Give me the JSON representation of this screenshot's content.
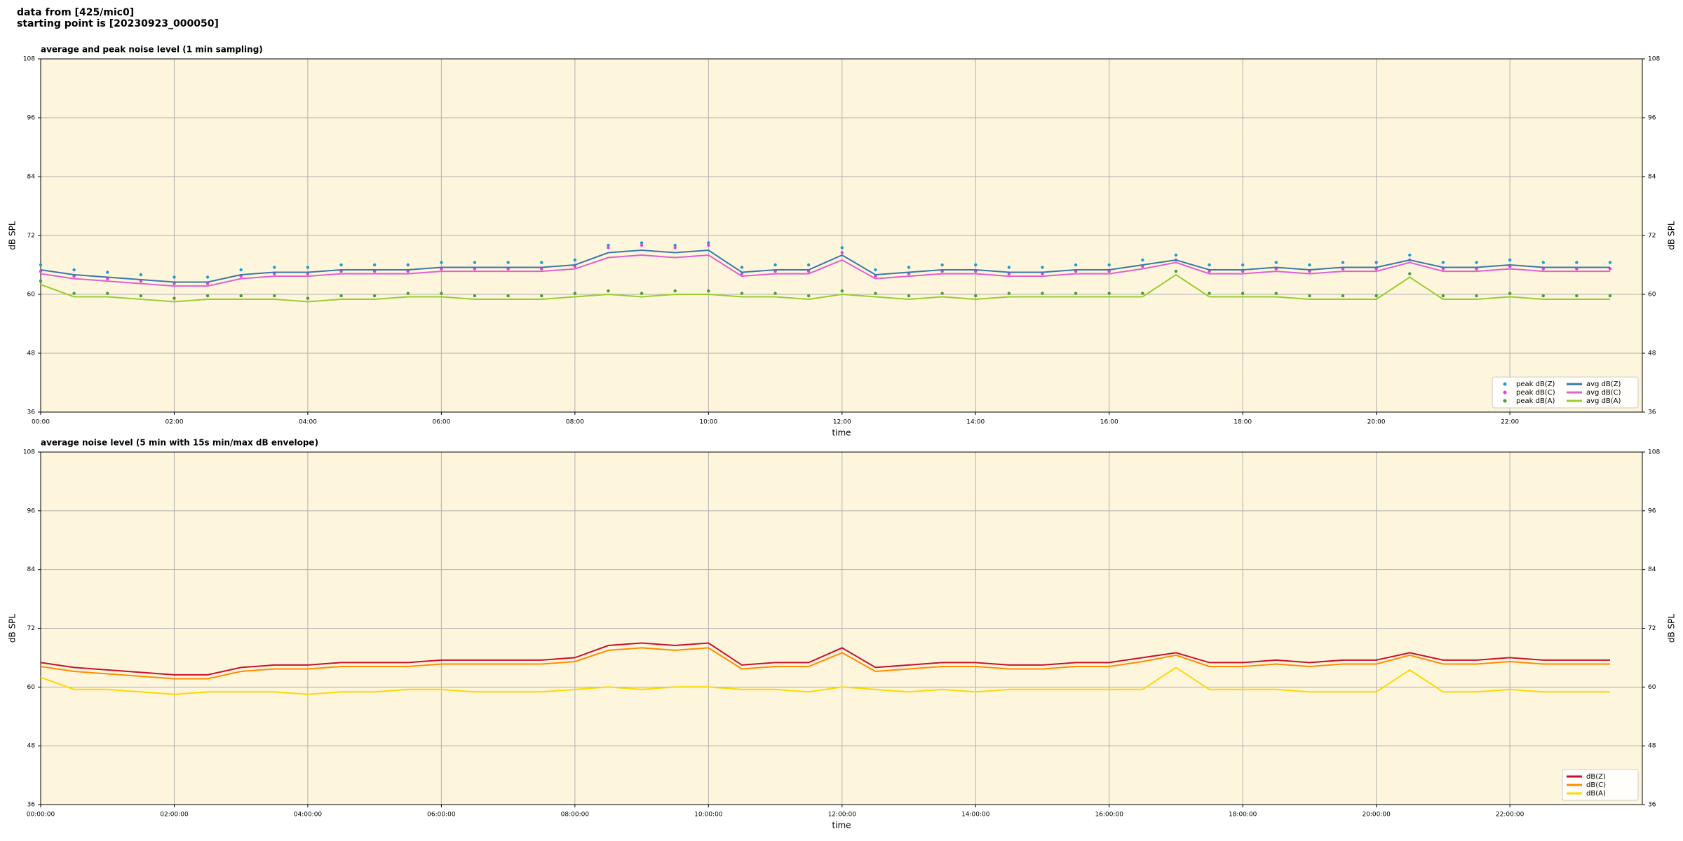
{
  "header": {
    "source": "data from [425/mic0]",
    "start": "starting point is [20230923_000050]"
  },
  "chart_data": [
    {
      "type": "line",
      "title": "average and peak noise level (1 min sampling)",
      "xlabel": "time",
      "ylabel": "dB SPL",
      "x": [
        "00:00",
        "00:30",
        "01:00",
        "01:30",
        "02:00",
        "02:30",
        "03:00",
        "03:30",
        "04:00",
        "04:30",
        "05:00",
        "05:30",
        "06:00",
        "06:30",
        "07:00",
        "07:30",
        "08:00",
        "08:30",
        "09:00",
        "09:30",
        "10:00",
        "10:30",
        "11:00",
        "11:30",
        "12:00",
        "12:30",
        "13:00",
        "13:30",
        "14:00",
        "14:30",
        "15:00",
        "15:30",
        "16:00",
        "16:30",
        "17:00",
        "17:30",
        "18:00",
        "18:30",
        "19:00",
        "19:30",
        "20:00",
        "20:30",
        "21:00",
        "21:30",
        "22:00",
        "22:30",
        "23:00",
        "23:30"
      ],
      "xlim": [
        "00:00",
        "23:59"
      ],
      "xticks": [
        "00:00",
        "02:00",
        "04:00",
        "06:00",
        "08:00",
        "10:00",
        "12:00",
        "14:00",
        "16:00",
        "18:00",
        "20:00",
        "22:00"
      ],
      "ylim": [
        36,
        108
      ],
      "yticks": [
        36,
        48,
        60,
        72,
        84,
        96,
        108
      ],
      "grid": true,
      "legend": "lower right",
      "legend_columns": 2,
      "series": [
        {
          "name": "peak dB(Z)",
          "style": "dots",
          "color": "#1f9bcf",
          "values": [
            66,
            65,
            64.5,
            64,
            63.5,
            63.5,
            65,
            65.5,
            65.5,
            66,
            66,
            66,
            66.5,
            66.5,
            66.5,
            66.5,
            67,
            70,
            70.5,
            70,
            70.5,
            65.5,
            66,
            66,
            69.5,
            65,
            65.5,
            66,
            66,
            65.5,
            65.5,
            66,
            66,
            67,
            68,
            66,
            66,
            66.5,
            66,
            66.5,
            66.5,
            68,
            66.5,
            66.5,
            67,
            66.5,
            66.5,
            66.5
          ]
        },
        {
          "name": "peak dB(C)",
          "style": "dots",
          "color": "#e040e0",
          "values": [
            64.7,
            63.7,
            63.2,
            62.7,
            62.2,
            62.2,
            63.7,
            64.2,
            64.2,
            64.7,
            64.7,
            64.7,
            65.2,
            65.2,
            65.2,
            65.2,
            65.7,
            69.5,
            70,
            69.5,
            70,
            64.2,
            64.7,
            64.7,
            68.5,
            63.7,
            64.2,
            64.7,
            64.7,
            64.2,
            64.2,
            64.7,
            64.7,
            65.7,
            67,
            64.7,
            64.7,
            65.2,
            64.7,
            65.2,
            65.2,
            67,
            65.2,
            65.2,
            65.7,
            65.2,
            65.2,
            65.2
          ]
        },
        {
          "name": "peak dB(A)",
          "style": "dots",
          "color": "#4a9a3a",
          "values": [
            62.7,
            60.2,
            60.2,
            59.7,
            59.2,
            59.7,
            59.7,
            59.7,
            59.2,
            59.7,
            59.7,
            60.2,
            60.2,
            59.7,
            59.7,
            59.7,
            60.2,
            60.7,
            60.2,
            60.7,
            60.7,
            60.2,
            60.2,
            59.7,
            60.7,
            60.2,
            59.7,
            60.2,
            59.7,
            60.2,
            60.2,
            60.2,
            60.2,
            60.2,
            64.7,
            60.2,
            60.2,
            60.2,
            59.7,
            59.7,
            59.7,
            64.2,
            59.7,
            59.7,
            60.2,
            59.7,
            59.7,
            59.7
          ]
        },
        {
          "name": "avg dB(Z)",
          "style": "line",
          "color": "#3a78a8",
          "values": [
            65,
            64,
            63.5,
            63,
            62.5,
            62.5,
            64,
            64.5,
            64.5,
            65,
            65,
            65,
            65.5,
            65.5,
            65.5,
            65.5,
            66,
            68.5,
            69,
            68.5,
            69,
            64.5,
            65,
            65,
            68,
            64,
            64.5,
            65,
            65,
            64.5,
            64.5,
            65,
            65,
            66,
            67,
            65,
            65,
            65.5,
            65,
            65.5,
            65.5,
            67,
            65.5,
            65.5,
            66,
            65.5,
            65.5,
            65.5
          ]
        },
        {
          "name": "avg dB(C)",
          "style": "line",
          "color": "#e060d0",
          "values": [
            64.2,
            63.2,
            62.7,
            62.2,
            61.7,
            61.7,
            63.2,
            63.7,
            63.7,
            64.2,
            64.2,
            64.2,
            64.7,
            64.7,
            64.7,
            64.7,
            65.2,
            67.5,
            68,
            67.5,
            68,
            63.7,
            64.2,
            64.2,
            67,
            63.2,
            63.7,
            64.2,
            64.2,
            63.7,
            63.7,
            64.2,
            64.2,
            65.2,
            66.5,
            64.2,
            64.2,
            64.7,
            64.2,
            64.7,
            64.7,
            66.5,
            64.7,
            64.7,
            65.2,
            64.7,
            64.7,
            64.7
          ]
        },
        {
          "name": "avg dB(A)",
          "style": "line",
          "color": "#9acd32",
          "values": [
            62,
            59.5,
            59.5,
            59,
            58.5,
            59,
            59,
            59,
            58.5,
            59,
            59,
            59.5,
            59.5,
            59,
            59,
            59,
            59.5,
            60,
            59.5,
            60,
            60,
            59.5,
            59.5,
            59,
            60,
            59.5,
            59,
            59.5,
            59,
            59.5,
            59.5,
            59.5,
            59.5,
            59.5,
            64,
            59.5,
            59.5,
            59.5,
            59,
            59,
            59,
            63.5,
            59,
            59,
            59.5,
            59,
            59,
            59
          ]
        }
      ]
    },
    {
      "type": "line",
      "title": "average noise level (5 min with 15s min/max dB envelope)",
      "xlabel": "time",
      "ylabel": "dB SPL",
      "x": [
        "00:00:00",
        "00:30:00",
        "01:00:00",
        "01:30:00",
        "02:00:00",
        "02:30:00",
        "03:00:00",
        "03:30:00",
        "04:00:00",
        "04:30:00",
        "05:00:00",
        "05:30:00",
        "06:00:00",
        "06:30:00",
        "07:00:00",
        "07:30:00",
        "08:00:00",
        "08:30:00",
        "09:00:00",
        "09:30:00",
        "10:00:00",
        "10:30:00",
        "11:00:00",
        "11:30:00",
        "12:00:00",
        "12:30:00",
        "13:00:00",
        "13:30:00",
        "14:00:00",
        "14:30:00",
        "15:00:00",
        "15:30:00",
        "16:00:00",
        "16:30:00",
        "17:00:00",
        "17:30:00",
        "18:00:00",
        "18:30:00",
        "19:00:00",
        "19:30:00",
        "20:00:00",
        "20:30:00",
        "21:00:00",
        "21:30:00",
        "22:00:00",
        "22:30:00",
        "23:00:00",
        "23:30:00"
      ],
      "xlim": [
        "00:00:00",
        "23:59:00"
      ],
      "xticks": [
        "00:00:00",
        "02:00:00",
        "04:00:00",
        "06:00:00",
        "08:00:00",
        "10:00:00",
        "12:00:00",
        "14:00:00",
        "16:00:00",
        "18:00:00",
        "20:00:00",
        "22:00:00"
      ],
      "ylim": [
        36,
        108
      ],
      "yticks": [
        36,
        48,
        60,
        72,
        84,
        96,
        108
      ],
      "grid": true,
      "legend": "lower right",
      "legend_columns": 1,
      "series": [
        {
          "name": "dB(Z)",
          "style": "line",
          "color": "#c8102e",
          "values": [
            65,
            64,
            63.5,
            63,
            62.5,
            62.5,
            64,
            64.5,
            64.5,
            65,
            65,
            65,
            65.5,
            65.5,
            65.5,
            65.5,
            66,
            68.5,
            69,
            68.5,
            69,
            64.5,
            65,
            65,
            68,
            64,
            64.5,
            65,
            65,
            64.5,
            64.5,
            65,
            65,
            66,
            67,
            65,
            65,
            65.5,
            65,
            65.5,
            65.5,
            67,
            65.5,
            65.5,
            66,
            65.5,
            65.5,
            65.5
          ]
        },
        {
          "name": "dB(C)",
          "style": "line",
          "color": "#ff8c00",
          "values": [
            64.2,
            63.2,
            62.7,
            62.2,
            61.7,
            61.7,
            63.2,
            63.7,
            63.7,
            64.2,
            64.2,
            64.2,
            64.7,
            64.7,
            64.7,
            64.7,
            65.2,
            67.5,
            68,
            67.5,
            68,
            63.7,
            64.2,
            64.2,
            67,
            63.2,
            63.7,
            64.2,
            64.2,
            63.7,
            63.7,
            64.2,
            64.2,
            65.2,
            66.5,
            64.2,
            64.2,
            64.7,
            64.2,
            64.7,
            64.7,
            66.5,
            64.7,
            64.7,
            65.2,
            64.7,
            64.7,
            64.7
          ]
        },
        {
          "name": "dB(A)",
          "style": "line",
          "color": "#ffd700",
          "values": [
            62,
            59.5,
            59.5,
            59,
            58.5,
            59,
            59,
            59,
            58.5,
            59,
            59,
            59.5,
            59.5,
            59,
            59,
            59,
            59.5,
            60,
            59.5,
            60,
            60,
            59.5,
            59.5,
            59,
            60,
            59.5,
            59,
            59.5,
            59,
            59.5,
            59.5,
            59.5,
            59.5,
            59.5,
            64,
            59.5,
            59.5,
            59.5,
            59,
            59,
            59,
            63.5,
            59,
            59,
            59.5,
            59,
            59,
            59
          ]
        }
      ]
    }
  ]
}
